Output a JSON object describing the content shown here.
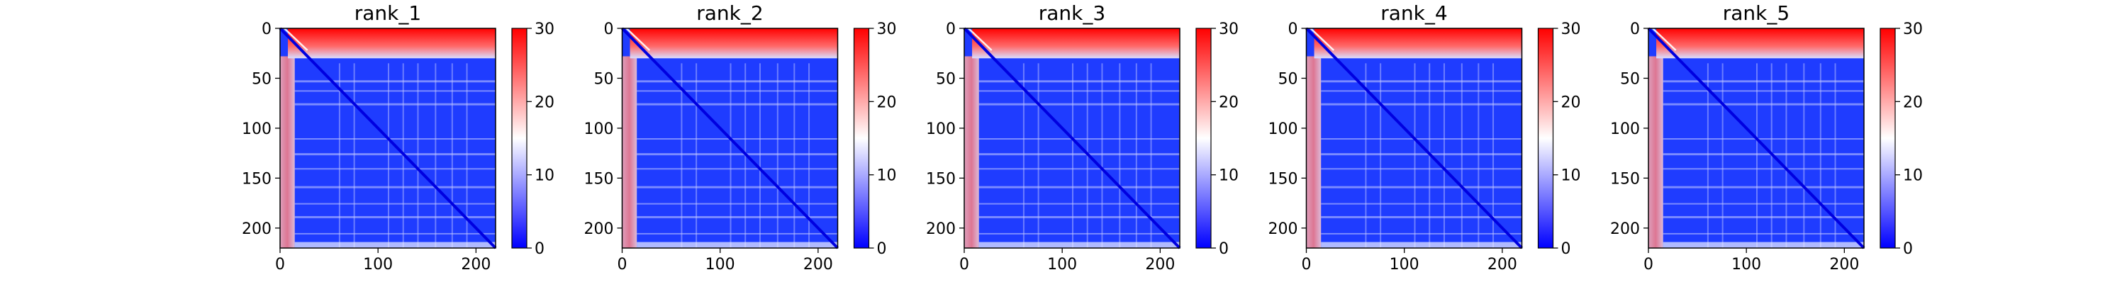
{
  "chart_data": [
    {
      "type": "heatmap",
      "title": "rank_1",
      "matrix_size": 220,
      "x_ticks": [
        0,
        100,
        200
      ],
      "y_ticks": [
        0,
        50,
        100,
        150,
        200
      ],
      "colorbar": {
        "vmin": 0,
        "vmax": 30,
        "ticks": [
          0,
          10,
          20,
          30
        ],
        "colormap": "bwr"
      }
    },
    {
      "type": "heatmap",
      "title": "rank_2",
      "matrix_size": 220,
      "x_ticks": [
        0,
        100,
        200
      ],
      "y_ticks": [
        0,
        50,
        100,
        150,
        200
      ],
      "colorbar": {
        "vmin": 0,
        "vmax": 30,
        "ticks": [
          0,
          10,
          20,
          30
        ],
        "colormap": "bwr"
      }
    },
    {
      "type": "heatmap",
      "title": "rank_3",
      "matrix_size": 220,
      "x_ticks": [
        0,
        100,
        200
      ],
      "y_ticks": [
        0,
        50,
        100,
        150,
        200
      ],
      "colorbar": {
        "vmin": 0,
        "vmax": 30,
        "ticks": [
          0,
          10,
          20,
          30
        ],
        "colormap": "bwr"
      }
    },
    {
      "type": "heatmap",
      "title": "rank_4",
      "matrix_size": 220,
      "x_ticks": [
        0,
        100,
        200
      ],
      "y_ticks": [
        0,
        50,
        100,
        150,
        200
      ],
      "colorbar": {
        "vmin": 0,
        "vmax": 30,
        "ticks": [
          0,
          10,
          20,
          30
        ],
        "colormap": "bwr"
      }
    },
    {
      "type": "heatmap",
      "title": "rank_5",
      "matrix_size": 220,
      "x_ticks": [
        0,
        100,
        200
      ],
      "y_ticks": [
        0,
        50,
        100,
        150,
        200
      ],
      "colorbar": {
        "vmin": 0,
        "vmax": 30,
        "ticks": [
          0,
          10,
          20,
          30
        ],
        "colormap": "bwr"
      }
    }
  ],
  "colors": {
    "low": "#0000ff",
    "mid": "#ffffff",
    "high": "#ff0000"
  }
}
